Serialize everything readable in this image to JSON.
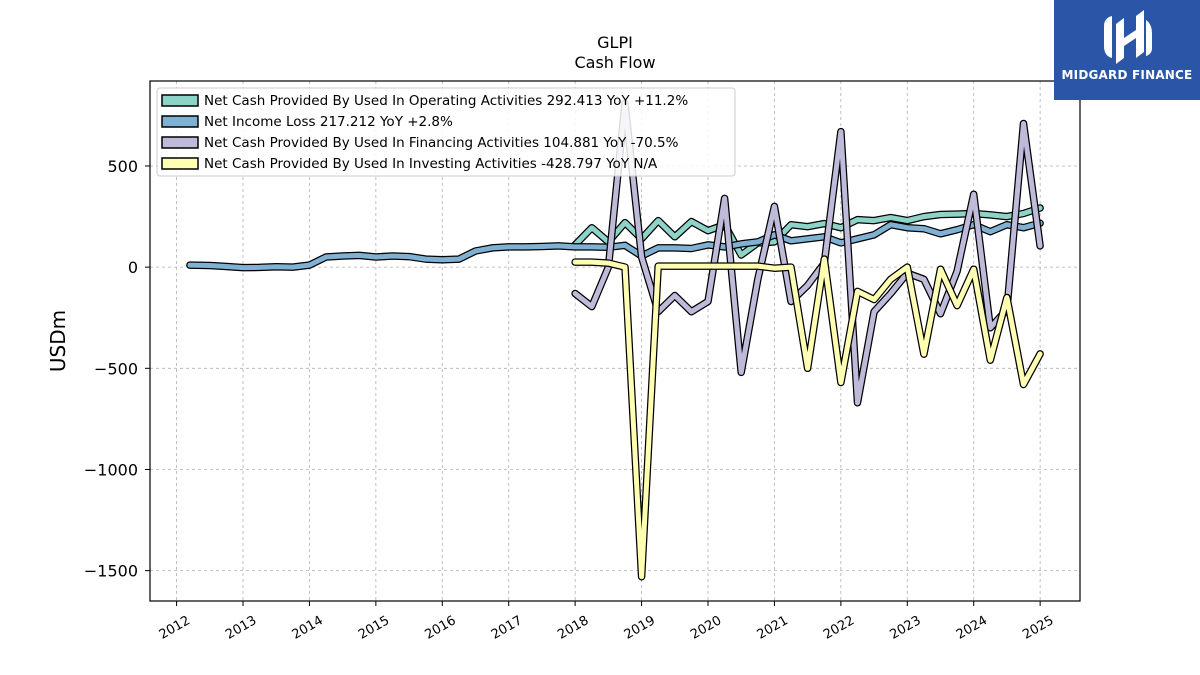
{
  "chart_data": {
    "type": "line",
    "title": "GLPI",
    "subtitle": "Cash Flow",
    "xlabel": "",
    "ylabel": "USDm",
    "xlim": [
      2011.6,
      2025.6
    ],
    "ylim": [
      -1650,
      920
    ],
    "x_ticks": [
      "2012",
      "2013",
      "2014",
      "2015",
      "2016",
      "2017",
      "2018",
      "2019",
      "2020",
      "2021",
      "2022",
      "2023",
      "2024",
      "2025"
    ],
    "y_ticks": [
      500,
      0,
      -500,
      -1000,
      -1500
    ],
    "y_tick_labels": [
      "500",
      "0",
      "−500",
      "−1000",
      "−1500"
    ],
    "grid": true,
    "legend_position": "top-left",
    "series": [
      {
        "name": "Net Cash Provided By Used In Operating Activities",
        "legend_label": "Net Cash Provided By Used In Operating Activities  292.413 YoY +11.2%",
        "color": "#8dd3c7",
        "points": [
          [
            2018.0,
            110
          ],
          [
            2018.25,
            195
          ],
          [
            2018.5,
            125
          ],
          [
            2018.75,
            220
          ],
          [
            2019.0,
            140
          ],
          [
            2019.25,
            230
          ],
          [
            2019.5,
            150
          ],
          [
            2019.75,
            225
          ],
          [
            2020.0,
            180
          ],
          [
            2020.25,
            210
          ],
          [
            2020.5,
            60
          ],
          [
            2020.75,
            120
          ],
          [
            2021.0,
            125
          ],
          [
            2021.25,
            210
          ],
          [
            2021.5,
            200
          ],
          [
            2021.75,
            215
          ],
          [
            2022.0,
            195
          ],
          [
            2022.25,
            235
          ],
          [
            2022.5,
            230
          ],
          [
            2022.75,
            245
          ],
          [
            2023.0,
            230
          ],
          [
            2023.25,
            250
          ],
          [
            2023.5,
            260
          ],
          [
            2023.75,
            262
          ],
          [
            2024.0,
            265
          ],
          [
            2024.25,
            258
          ],
          [
            2024.5,
            250
          ],
          [
            2024.75,
            265
          ],
          [
            2025.0,
            292.413
          ]
        ]
      },
      {
        "name": "Net Income Loss",
        "legend_label": "Net Income Loss  217.212 YoY +2.8%",
        "color": "#80b1d3",
        "points": [
          [
            2012.2,
            10
          ],
          [
            2012.5,
            8
          ],
          [
            2012.75,
            3
          ],
          [
            2013.0,
            -2
          ],
          [
            2013.25,
            -1
          ],
          [
            2013.5,
            2
          ],
          [
            2013.75,
            0
          ],
          [
            2014.0,
            10
          ],
          [
            2014.25,
            50
          ],
          [
            2014.5,
            55
          ],
          [
            2014.75,
            58
          ],
          [
            2015.0,
            50
          ],
          [
            2015.25,
            55
          ],
          [
            2015.5,
            52
          ],
          [
            2015.75,
            40
          ],
          [
            2016.0,
            37
          ],
          [
            2016.25,
            40
          ],
          [
            2016.5,
            80
          ],
          [
            2016.75,
            95
          ],
          [
            2017.0,
            100
          ],
          [
            2017.25,
            100
          ],
          [
            2017.5,
            102
          ],
          [
            2017.75,
            105
          ],
          [
            2018.0,
            100
          ],
          [
            2018.25,
            100
          ],
          [
            2018.5,
            98
          ],
          [
            2018.75,
            108
          ],
          [
            2019.0,
            55
          ],
          [
            2019.25,
            95
          ],
          [
            2019.5,
            95
          ],
          [
            2019.75,
            92
          ],
          [
            2020.0,
            110
          ],
          [
            2020.25,
            100
          ],
          [
            2020.5,
            115
          ],
          [
            2020.75,
            125
          ],
          [
            2021.0,
            160
          ],
          [
            2021.25,
            130
          ],
          [
            2021.5,
            140
          ],
          [
            2021.75,
            150
          ],
          [
            2022.0,
            120
          ],
          [
            2022.25,
            140
          ],
          [
            2022.5,
            160
          ],
          [
            2022.75,
            210
          ],
          [
            2023.0,
            195
          ],
          [
            2023.25,
            190
          ],
          [
            2023.5,
            165
          ],
          [
            2023.75,
            185
          ],
          [
            2024.0,
            210
          ],
          [
            2024.25,
            175
          ],
          [
            2024.5,
            210
          ],
          [
            2024.75,
            195
          ],
          [
            2025.0,
            217.212
          ]
        ]
      },
      {
        "name": "Net Cash Provided By Used In Financing Activities",
        "legend_label": "Net Cash Provided By Used In Financing Activities  104.881 YoY -70.5%",
        "color": "#bebada",
        "points": [
          [
            2018.0,
            -130
          ],
          [
            2018.25,
            -195
          ],
          [
            2018.5,
            0
          ],
          [
            2018.75,
            810
          ],
          [
            2019.0,
            50
          ],
          [
            2019.25,
            -220
          ],
          [
            2019.5,
            -140
          ],
          [
            2019.75,
            -220
          ],
          [
            2020.0,
            -170
          ],
          [
            2020.25,
            340
          ],
          [
            2020.5,
            -520
          ],
          [
            2020.75,
            -60
          ],
          [
            2021.0,
            300
          ],
          [
            2021.25,
            -170
          ],
          [
            2021.5,
            -90
          ],
          [
            2021.75,
            20
          ],
          [
            2022.0,
            670
          ],
          [
            2022.25,
            -670
          ],
          [
            2022.5,
            -220
          ],
          [
            2022.75,
            -130
          ],
          [
            2023.0,
            -30
          ],
          [
            2023.25,
            -60
          ],
          [
            2023.5,
            -230
          ],
          [
            2023.75,
            -20
          ],
          [
            2024.0,
            360
          ],
          [
            2024.25,
            -300
          ],
          [
            2024.5,
            -210
          ],
          [
            2024.75,
            710
          ],
          [
            2025.0,
            104.881
          ]
        ]
      },
      {
        "name": "Net Cash Provided By Used In Investing Activities",
        "legend_label": "Net Cash Provided By Used In Investing Activities  -428.797 YoY N/A",
        "color": "#ffffb3",
        "points": [
          [
            2018.0,
            25
          ],
          [
            2018.25,
            25
          ],
          [
            2018.5,
            20
          ],
          [
            2018.75,
            0
          ],
          [
            2019.0,
            -1530
          ],
          [
            2019.25,
            5
          ],
          [
            2019.5,
            5
          ],
          [
            2019.75,
            5
          ],
          [
            2020.0,
            5
          ],
          [
            2020.25,
            5
          ],
          [
            2020.5,
            5
          ],
          [
            2020.75,
            5
          ],
          [
            2021.0,
            -5
          ],
          [
            2021.25,
            0
          ],
          [
            2021.5,
            -500
          ],
          [
            2021.75,
            40
          ],
          [
            2022.0,
            -570
          ],
          [
            2022.25,
            -120
          ],
          [
            2022.5,
            -160
          ],
          [
            2022.75,
            -60
          ],
          [
            2023.0,
            0
          ],
          [
            2023.25,
            -430
          ],
          [
            2023.5,
            -10
          ],
          [
            2023.75,
            -190
          ],
          [
            2024.0,
            -10
          ],
          [
            2024.25,
            -460
          ],
          [
            2024.5,
            -150
          ],
          [
            2024.75,
            -580
          ],
          [
            2025.0,
            -428.797
          ]
        ]
      }
    ]
  },
  "logo": {
    "text": "MIDGARD FINANCE",
    "icon": "midgard-logo-icon",
    "background": "#2b56a8"
  }
}
